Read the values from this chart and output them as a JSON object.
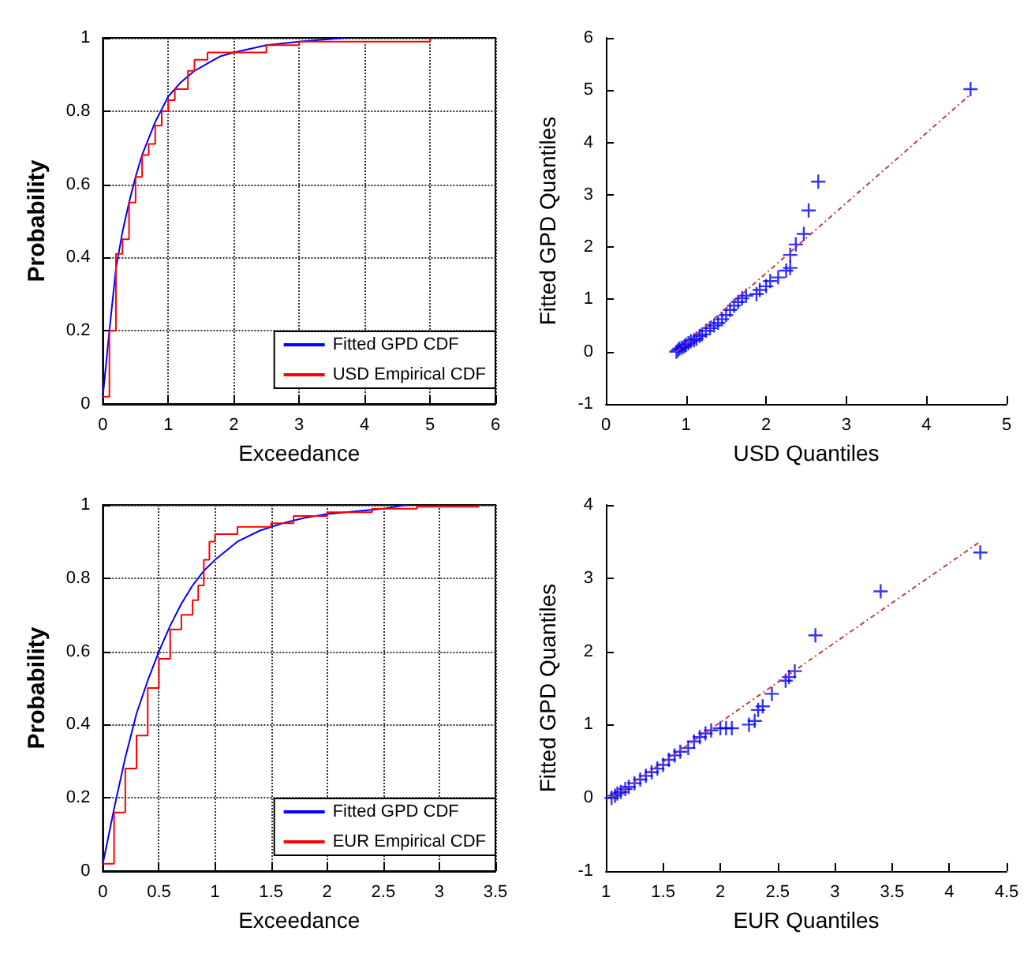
{
  "chart_data": [
    {
      "type": "line",
      "xlabel": "Exceedance",
      "ylabel": "Probability",
      "xlim": [
        0,
        6
      ],
      "ylim": [
        0,
        1
      ],
      "xticks": [
        0,
        1,
        2,
        3,
        4,
        5,
        6
      ],
      "yticks": [
        0,
        0.2,
        0.4,
        0.6,
        0.8,
        1
      ],
      "grid": true,
      "legend": "bottom right",
      "series": [
        {
          "name": "Fitted GPD CDF",
          "color": "#0000ff",
          "x": [
            0,
            0.1,
            0.2,
            0.3,
            0.4,
            0.5,
            0.6,
            0.8,
            1,
            1.2,
            1.4,
            1.6,
            1.8,
            2,
            2.5,
            3,
            3.7
          ],
          "values": [
            0.02,
            0.2,
            0.37,
            0.47,
            0.55,
            0.62,
            0.68,
            0.77,
            0.84,
            0.88,
            0.91,
            0.93,
            0.95,
            0.96,
            0.98,
            0.99,
            1
          ]
        },
        {
          "name": "USD Empirical CDF",
          "type": "step",
          "color": "#ff0000",
          "x": [
            0,
            0.1,
            0.2,
            0.3,
            0.4,
            0.5,
            0.6,
            0.7,
            0.8,
            0.9,
            1,
            1.1,
            1.3,
            1.4,
            1.6,
            2,
            2.5,
            3,
            5
          ],
          "values": [
            0.02,
            0.2,
            0.41,
            0.45,
            0.55,
            0.62,
            0.68,
            0.71,
            0.76,
            0.8,
            0.83,
            0.86,
            0.91,
            0.94,
            0.96,
            0.96,
            0.98,
            0.99,
            1
          ]
        }
      ]
    },
    {
      "type": "scatter",
      "xlabel": "USD Quantiles",
      "ylabel": "Fitted GPD Quantiles",
      "xlim": [
        0,
        5
      ],
      "ylim": [
        -1,
        6
      ],
      "xticks": [
        0,
        1,
        2,
        3,
        4,
        5
      ],
      "yticks": [
        -1,
        0,
        1,
        2,
        3,
        4,
        5,
        6
      ],
      "series": [
        {
          "marker": "cross",
          "color": "#0000ff",
          "x": [
            0.88,
            0.9,
            0.92,
            0.95,
            0.98,
            1.0,
            1.03,
            1.06,
            1.1,
            1.13,
            1.17,
            1.2,
            1.25,
            1.3,
            1.35,
            1.4,
            1.45,
            1.5,
            1.55,
            1.6,
            1.65,
            1.7,
            1.75,
            1.88,
            1.92,
            2.0,
            2.05,
            2.15,
            2.25,
            2.3,
            2.3,
            2.37,
            2.47,
            2.53,
            2.65,
            4.55
          ],
          "values": [
            0,
            0.03,
            0.06,
            0.08,
            0.1,
            0.13,
            0.16,
            0.2,
            0.22,
            0.25,
            0.3,
            0.33,
            0.4,
            0.45,
            0.5,
            0.55,
            0.62,
            0.7,
            0.8,
            0.88,
            0.95,
            1.02,
            1.07,
            1.1,
            1.18,
            1.25,
            1.35,
            1.42,
            1.55,
            1.6,
            1.85,
            2.05,
            2.25,
            2.7,
            3.25,
            5.02
          ]
        },
        {
          "type": "line",
          "line_style": "dashed",
          "color": "#c04040",
          "x": [
            0.88,
            4.55
          ],
          "values": [
            0,
            4.92
          ]
        }
      ]
    },
    {
      "type": "line",
      "xlabel": "Exceedance",
      "ylabel": "Probability",
      "xlim": [
        0,
        3.5
      ],
      "ylim": [
        0,
        1
      ],
      "xticks": [
        0,
        0.5,
        1,
        1.5,
        2,
        2.5,
        3,
        3.5
      ],
      "yticks": [
        0,
        0.2,
        0.4,
        0.6,
        0.8,
        1
      ],
      "grid": true,
      "legend": "bottom right",
      "series": [
        {
          "name": "Fitted GPD CDF",
          "color": "#0000ff",
          "x": [
            0,
            0.1,
            0.2,
            0.3,
            0.4,
            0.5,
            0.6,
            0.7,
            0.8,
            0.9,
            1,
            1.2,
            1.4,
            1.6,
            1.8,
            2,
            2.5,
            2.7
          ],
          "values": [
            0.02,
            0.17,
            0.31,
            0.43,
            0.52,
            0.6,
            0.67,
            0.73,
            0.78,
            0.82,
            0.85,
            0.9,
            0.93,
            0.95,
            0.965,
            0.975,
            0.99,
            1
          ]
        },
        {
          "name": "EUR Empirical CDF",
          "type": "step",
          "color": "#ff0000",
          "x": [
            0,
            0.1,
            0.2,
            0.3,
            0.4,
            0.5,
            0.6,
            0.7,
            0.8,
            0.85,
            0.9,
            0.95,
            1,
            1.2,
            1.5,
            1.7,
            2,
            2.4,
            2.8,
            3.35
          ],
          "values": [
            0.02,
            0.16,
            0.28,
            0.37,
            0.5,
            0.58,
            0.66,
            0.7,
            0.74,
            0.78,
            0.85,
            0.9,
            0.92,
            0.94,
            0.95,
            0.97,
            0.98,
            0.99,
            0.995,
            1
          ]
        }
      ]
    },
    {
      "type": "scatter",
      "xlabel": "EUR Quantiles",
      "ylabel": "Fitted GPD Quantiles",
      "xlim": [
        1,
        4.5
      ],
      "ylim": [
        -1,
        4
      ],
      "xticks": [
        1,
        1.5,
        2,
        2.5,
        3,
        3.5,
        4,
        4.5
      ],
      "yticks": [
        -1,
        0,
        1,
        2,
        3,
        4
      ],
      "series": [
        {
          "marker": "cross",
          "color": "#0000ff",
          "x": [
            1.05,
            1.08,
            1.1,
            1.13,
            1.17,
            1.2,
            1.25,
            1.3,
            1.35,
            1.4,
            1.45,
            1.5,
            1.55,
            1.6,
            1.65,
            1.72,
            1.77,
            1.82,
            1.87,
            1.92,
            2.0,
            2.05,
            2.1,
            2.25,
            2.3,
            2.33,
            2.37,
            2.45,
            2.57,
            2.6,
            2.65,
            2.83,
            3.4,
            4.27
          ],
          "values": [
            0,
            0.03,
            0.06,
            0.08,
            0.12,
            0.15,
            0.2,
            0.25,
            0.3,
            0.35,
            0.4,
            0.45,
            0.52,
            0.58,
            0.63,
            0.68,
            0.77,
            0.83,
            0.88,
            0.92,
            0.95,
            0.95,
            0.95,
            1.0,
            1.05,
            1.2,
            1.25,
            1.42,
            1.6,
            1.65,
            1.73,
            2.22,
            2.82,
            3.35
          ]
        },
        {
          "type": "line",
          "line_style": "dashed",
          "color": "#c04040",
          "x": [
            1.05,
            4.27
          ],
          "values": [
            0,
            3.5
          ]
        }
      ]
    }
  ]
}
